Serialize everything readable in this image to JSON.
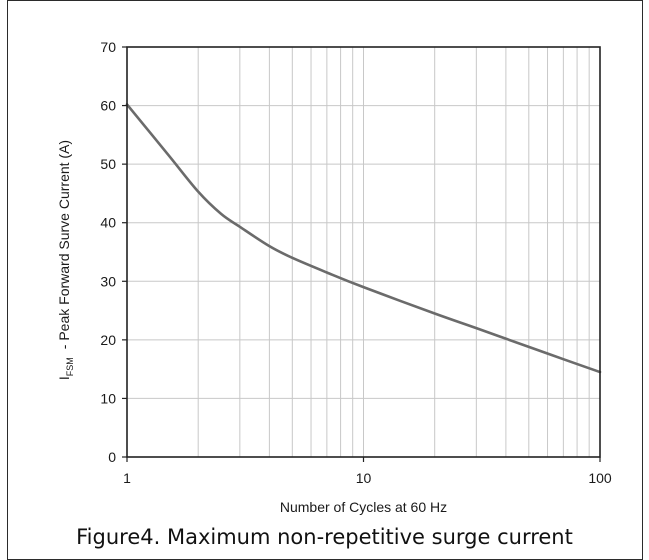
{
  "chart_data": {
    "type": "line",
    "title": "",
    "xlabel": "Number of Cycles at 60 Hz",
    "ylabel_main": "I",
    "ylabel_sub": "FSM",
    "ylabel_rest": "- Peak Forward Surve Current (A)",
    "xscale": "log",
    "xlim": [
      1,
      100
    ],
    "ylim": [
      0,
      70
    ],
    "grid": true,
    "x_ticks": [
      {
        "value": 1,
        "label": "1"
      },
      {
        "value": 10,
        "label": "10"
      },
      {
        "value": 100,
        "label": "100"
      }
    ],
    "y_ticks": [
      {
        "value": 0,
        "label": "0"
      },
      {
        "value": 10,
        "label": "10"
      },
      {
        "value": 20,
        "label": "20"
      },
      {
        "value": 30,
        "label": "30"
      },
      {
        "value": 40,
        "label": "40"
      },
      {
        "value": 50,
        "label": "50"
      },
      {
        "value": 60,
        "label": "60"
      },
      {
        "value": 70,
        "label": "70"
      }
    ],
    "series": [
      {
        "color": "#6b6b6b",
        "x": [
          1,
          1.5,
          2,
          2.5,
          3,
          4,
          5,
          7,
          10,
          20,
          30,
          50,
          70,
          100
        ],
        "y": [
          60.2,
          51.5,
          45.3,
          41.5,
          39.3,
          36.0,
          34.0,
          31.5,
          29.0,
          24.5,
          22.0,
          18.8,
          16.7,
          14.5
        ]
      }
    ]
  },
  "caption": "Figure4. Maximum non-repetitive surge current"
}
